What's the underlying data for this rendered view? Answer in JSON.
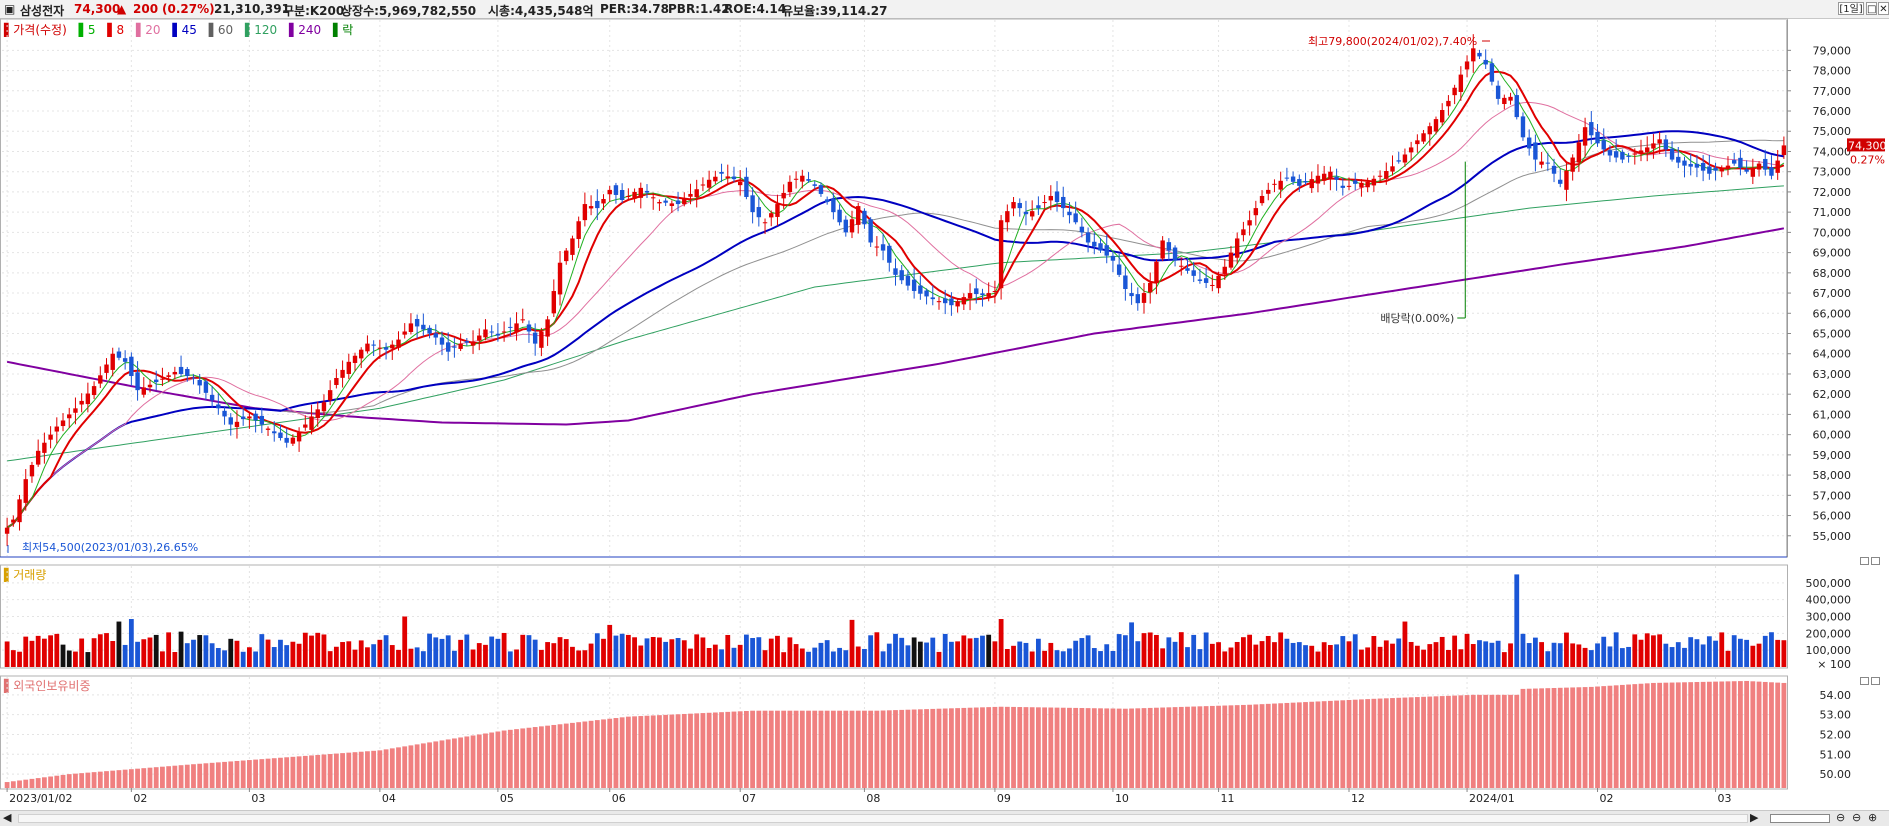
{
  "header": {
    "name": "삼성전자",
    "price": "74,300",
    "change_arrow": "▲",
    "change": "200",
    "change_pct": "(0.27%)",
    "volume": "21,310,391",
    "category": "구분:K200",
    "listed_shares": "상장수:5,969,782,550",
    "market_cap": "시총:4,435,548억",
    "per": "PER:34.78",
    "pbr": "PBR:1.42",
    "roe": "ROE:4.14",
    "float": "유보율:39,114.27",
    "period": "[1일]",
    "window_btn1": "□",
    "window_btn2": "✕"
  },
  "price_legend": [
    {
      "label": "가격(수정)",
      "color": "#d00000"
    },
    {
      "label": "5",
      "color": "#00b000"
    },
    {
      "label": "8",
      "color": "#e00000"
    },
    {
      "label": "20",
      "color": "#e070a0"
    },
    {
      "label": "45",
      "color": "#0000c0"
    },
    {
      "label": "60",
      "color": "#606060"
    },
    {
      "label": "120",
      "color": "#30a060"
    },
    {
      "label": "240",
      "color": "#8000a0"
    },
    {
      "label": "락",
      "color": "#008000"
    }
  ],
  "volume_legend": "거래량",
  "foreign_legend": "외국인보유비중",
  "annotations": {
    "high": "최고79,800(2024/01/02),7.40%",
    "low": "최저54,500(2023/01/03),26.65%",
    "dividend": "배당락(0.00%)"
  },
  "last_price_tag": "74,300",
  "last_pct_tag": "0.27%",
  "volume_unit": "× 100",
  "colors": {
    "up": "#e00000",
    "down": "#1a56d6",
    "ma5": "#20b020",
    "ma8": "#e00000",
    "ma20": "#e070a0",
    "ma45": "#0000c0",
    "ma120": "#30a060",
    "ma240": "#8000a0",
    "foreign": "#f08080"
  },
  "chart_data": [
    {
      "type": "candlestick",
      "title": "삼성전자",
      "ylim": [
        54000,
        80500
      ],
      "y_ticks": [
        55000,
        56000,
        57000,
        58000,
        59000,
        60000,
        61000,
        62000,
        63000,
        64000,
        65000,
        66000,
        67000,
        68000,
        69000,
        70000,
        71000,
        72000,
        73000,
        74000,
        75000,
        76000,
        77000,
        78000,
        79000
      ],
      "y_tick_labels": [
        "55,000",
        "56,000",
        "57,000",
        "58,000",
        "59,000",
        "60,000",
        "61,000",
        "62,000",
        "63,000",
        "64,000",
        "65,000",
        "66,000",
        "67,000",
        "68,000",
        "69,000",
        "70,000",
        "71,000",
        "72,000",
        "73,000",
        "74,000",
        "75,000",
        "76,000",
        "77,000",
        "78,000",
        "79,000"
      ],
      "x_ticks": [
        {
          "i": 0,
          "label": "2023/01/02"
        },
        {
          "i": 20,
          "label": "02"
        },
        {
          "i": 39,
          "label": "03"
        },
        {
          "i": 60,
          "label": "04"
        },
        {
          "i": 79,
          "label": "05"
        },
        {
          "i": 97,
          "label": "06"
        },
        {
          "i": 118,
          "label": "07"
        },
        {
          "i": 138,
          "label": "08"
        },
        {
          "i": 159,
          "label": "09"
        },
        {
          "i": 178,
          "label": "10"
        },
        {
          "i": 195,
          "label": "11"
        },
        {
          "i": 216,
          "label": "12"
        },
        {
          "i": 235,
          "label": "2024/01"
        },
        {
          "i": 256,
          "label": "02"
        },
        {
          "i": 275,
          "label": "03"
        }
      ],
      "close_keypoints": [
        [
          0,
          55400
        ],
        [
          1,
          55800
        ],
        [
          3,
          57800
        ],
        [
          5,
          59200
        ],
        [
          8,
          60400
        ],
        [
          11,
          61300
        ],
        [
          14,
          62400
        ],
        [
          17,
          64000
        ],
        [
          19,
          63600
        ],
        [
          21,
          62200
        ],
        [
          24,
          62600
        ],
        [
          27,
          63100
        ],
        [
          30,
          62800
        ],
        [
          33,
          61700
        ],
        [
          36,
          60500
        ],
        [
          39,
          60900
        ],
        [
          42,
          60300
        ],
        [
          45,
          59600
        ],
        [
          47,
          60100
        ],
        [
          49,
          60900
        ],
        [
          51,
          61600
        ],
        [
          53,
          62800
        ],
        [
          55,
          63600
        ],
        [
          58,
          64500
        ],
        [
          61,
          64200
        ],
        [
          63,
          64700
        ],
        [
          65,
          65500
        ],
        [
          67,
          65200
        ],
        [
          69,
          64800
        ],
        [
          71,
          64100
        ],
        [
          73,
          64500
        ],
        [
          75,
          64600
        ],
        [
          77,
          65200
        ],
        [
          79,
          64900
        ],
        [
          81,
          65300
        ],
        [
          83,
          65700
        ],
        [
          85,
          64500
        ],
        [
          87,
          65700
        ],
        [
          89,
          68500
        ],
        [
          91,
          69700
        ],
        [
          93,
          71400
        ],
        [
          95,
          71200
        ],
        [
          97,
          72100
        ],
        [
          99,
          71600
        ],
        [
          102,
          72200
        ],
        [
          105,
          71500
        ],
        [
          108,
          71400
        ],
        [
          110,
          71900
        ],
        [
          113,
          72600
        ],
        [
          115,
          72900
        ],
        [
          118,
          72500
        ],
        [
          120,
          71000
        ],
        [
          122,
          70500
        ],
        [
          124,
          71400
        ],
        [
          126,
          72500
        ],
        [
          128,
          72800
        ],
        [
          130,
          72300
        ],
        [
          132,
          71500
        ],
        [
          135,
          70000
        ],
        [
          137,
          71300
        ],
        [
          139,
          69500
        ],
        [
          141,
          69100
        ],
        [
          143,
          67900
        ],
        [
          146,
          67100
        ],
        [
          149,
          66700
        ],
        [
          152,
          66400
        ],
        [
          155,
          67000
        ],
        [
          157,
          66900
        ],
        [
          159,
          67100
        ],
        [
          160,
          70600
        ],
        [
          162,
          71500
        ],
        [
          164,
          70900
        ],
        [
          166,
          71200
        ],
        [
          168,
          71800
        ],
        [
          170,
          71200
        ],
        [
          172,
          70500
        ],
        [
          174,
          69500
        ],
        [
          176,
          69100
        ],
        [
          178,
          68600
        ],
        [
          180,
          67200
        ],
        [
          182,
          66500
        ],
        [
          184,
          67500
        ],
        [
          186,
          69600
        ],
        [
          188,
          68600
        ],
        [
          190,
          68100
        ],
        [
          192,
          67600
        ],
        [
          194,
          67400
        ],
        [
          196,
          68300
        ],
        [
          198,
          69700
        ],
        [
          200,
          70600
        ],
        [
          202,
          71800
        ],
        [
          204,
          72400
        ],
        [
          206,
          72700
        ],
        [
          208,
          72300
        ],
        [
          211,
          72800
        ],
        [
          213,
          73000
        ],
        [
          215,
          72200
        ],
        [
          217,
          72400
        ],
        [
          219,
          72500
        ],
        [
          221,
          72800
        ],
        [
          224,
          73500
        ],
        [
          226,
          74200
        ],
        [
          228,
          74900
        ],
        [
          230,
          75600
        ],
        [
          232,
          76500
        ],
        [
          234,
          77800
        ],
        [
          236,
          79100
        ],
        [
          238,
          78300
        ],
        [
          240,
          76600
        ],
        [
          242,
          76700
        ],
        [
          244,
          74700
        ],
        [
          246,
          73600
        ],
        [
          248,
          73400
        ],
        [
          250,
          72400
        ],
        [
          252,
          73700
        ],
        [
          254,
          75200
        ],
        [
          256,
          74400
        ],
        [
          258,
          73800
        ],
        [
          260,
          73600
        ],
        [
          262,
          73900
        ],
        [
          264,
          74200
        ],
        [
          266,
          74600
        ],
        [
          268,
          73600
        ],
        [
          270,
          73300
        ],
        [
          272,
          73200
        ],
        [
          274,
          72900
        ],
        [
          276,
          73200
        ],
        [
          278,
          73400
        ],
        [
          280,
          73000
        ],
        [
          282,
          73400
        ],
        [
          284,
          72800
        ],
        [
          286,
          74300
        ]
      ],
      "series_names": [
        "5",
        "8",
        "20",
        "45",
        "60",
        "120",
        "240"
      ],
      "annotations": [
        "최고79,800(2024/01/02),7.40%",
        "최저54,500(2023/01/03),26.65%",
        "배당락(0.00%)"
      ]
    },
    {
      "type": "bar",
      "title": "거래량",
      "ylim": [
        0,
        600000
      ],
      "y_ticks": [
        100000,
        200000,
        300000,
        400000,
        500000
      ],
      "y_tick_labels": [
        "100,000",
        "200,000",
        "300,000",
        "400,000",
        "500,000"
      ],
      "unit": "× 100",
      "spikes": [
        [
          18,
          270000
        ],
        [
          20,
          285000
        ],
        [
          28,
          210000
        ],
        [
          64,
          300000
        ],
        [
          97,
          250000
        ],
        [
          136,
          280000
        ],
        [
          160,
          285000
        ],
        [
          181,
          265000
        ],
        [
          225,
          270000
        ],
        [
          243,
          550000
        ]
      ],
      "typical": 160000
    },
    {
      "type": "bar",
      "title": "외국인보유비중",
      "ylim": [
        49.3,
        54.9
      ],
      "y_ticks": [
        50,
        51,
        52,
        53,
        54
      ],
      "y_tick_labels": [
        "50.00",
        "51.00",
        "52.00",
        "53.00",
        "54.00"
      ],
      "keypoints": [
        [
          0,
          49.6
        ],
        [
          10,
          50.0
        ],
        [
          30,
          50.5
        ],
        [
          60,
          51.2
        ],
        [
          80,
          52.2
        ],
        [
          100,
          52.9
        ],
        [
          120,
          53.2
        ],
        [
          140,
          53.2
        ],
        [
          160,
          53.4
        ],
        [
          180,
          53.3
        ],
        [
          200,
          53.5
        ],
        [
          220,
          53.8
        ],
        [
          236,
          54.0
        ],
        [
          243,
          54.0
        ],
        [
          244,
          54.3
        ],
        [
          255,
          54.4
        ],
        [
          265,
          54.6
        ],
        [
          280,
          54.7
        ],
        [
          286,
          54.6
        ]
      ]
    }
  ]
}
